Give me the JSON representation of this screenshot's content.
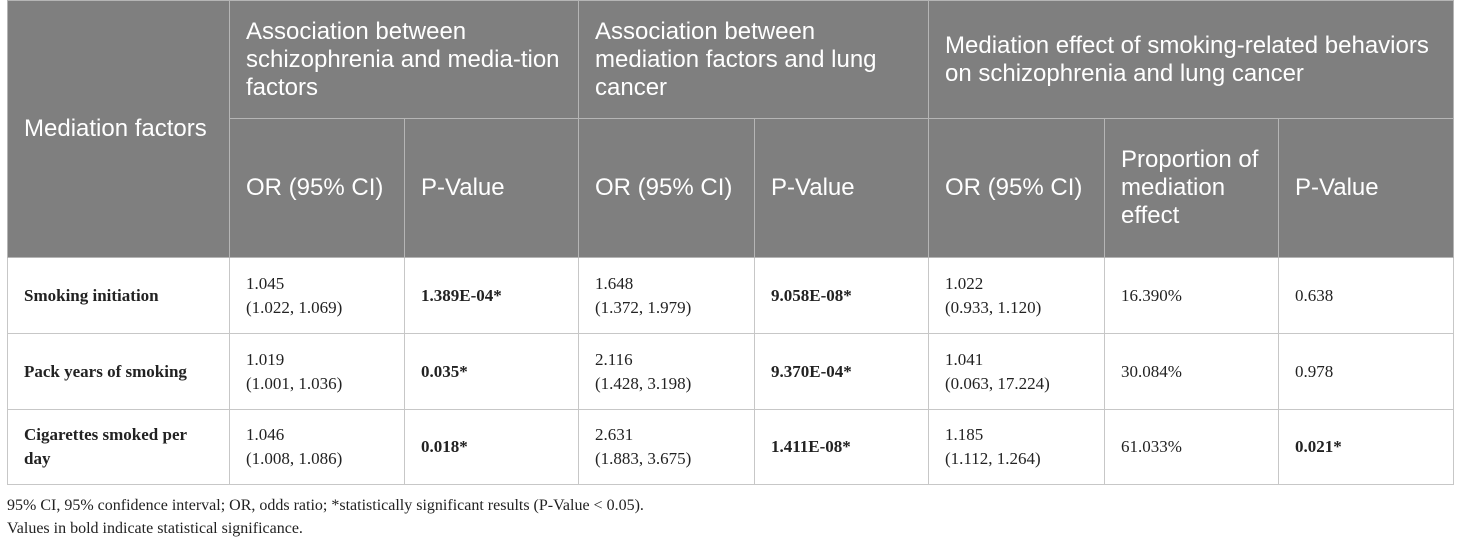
{
  "table": {
    "header": {
      "row_label": "Mediation factors",
      "groups": [
        "Association between schizophrenia and media-tion factors",
        "Association between mediation factors and lung cancer",
        "Mediation effect of smoking-related behaviors on schizophrenia and lung cancer"
      ],
      "subheaders": [
        "OR (95% CI)",
        "P-Value",
        "OR (95% CI)",
        "P-Value",
        "OR (95% CI)",
        "Proportion of mediation effect",
        "P-Value"
      ]
    },
    "rows": [
      {
        "label": "Smoking initiation",
        "or1": "1.045",
        "ci1": "(1.022, 1.069)",
        "p1": "1.389E-04*",
        "or2": "1.648",
        "ci2": "(1.372, 1.979)",
        "p2": "9.058E-08*",
        "or3": "1.022",
        "ci3": "(0.933, 1.120)",
        "prop": "16.390%",
        "p3": "0.638"
      },
      {
        "label": "Pack years of smoking",
        "or1": "1.019",
        "ci1": "(1.001, 1.036)",
        "p1": "0.035*",
        "or2": "2.116",
        "ci2": "(1.428, 3.198)",
        "p2": "9.370E-04*",
        "or3": "1.041",
        "ci3": "(0.063, 17.224)",
        "prop": "30.084%",
        "p3": "0.978"
      },
      {
        "label": "Cigarettes smoked per day",
        "or1": "1.046",
        "ci1": "(1.008, 1.086)",
        "p1": "0.018*",
        "or2": "2.631",
        "ci2": "(1.883, 3.675)",
        "p2": "1.411E-08*",
        "or3": "1.185",
        "ci3": "(1.112, 1.264)",
        "prop": "61.033%",
        "p3": "0.021*"
      }
    ]
  },
  "footnotes": [
    "95% CI, 95% confidence interval; OR, odds ratio; *statistically significant results (P-Value < 0.05).",
    "Values in bold indicate statistical significance."
  ]
}
